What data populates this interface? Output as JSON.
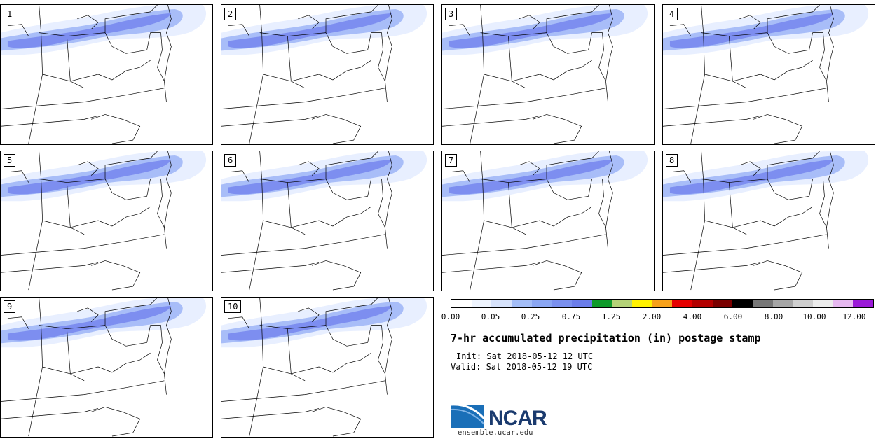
{
  "panels": [
    {
      "label": "1"
    },
    {
      "label": "2"
    },
    {
      "label": "3"
    },
    {
      "label": "4"
    },
    {
      "label": "5"
    },
    {
      "label": "6"
    },
    {
      "label": "7"
    },
    {
      "label": "8"
    },
    {
      "label": "9"
    },
    {
      "label": "10"
    }
  ],
  "colorbar": {
    "colors": [
      "#ffffff",
      "#eef4fe",
      "#d6e2fb",
      "#a3bdf7",
      "#8aa6f3",
      "#7a90ef",
      "#6b7dea",
      "#0e9a2a",
      "#b4d277",
      "#fff200",
      "#f7a11a",
      "#e60000",
      "#b30000",
      "#7a0000",
      "#000000",
      "#777777",
      "#a6a6a6",
      "#cfcfcf",
      "#ececec",
      "#e6b8f0",
      "#9b1ad8"
    ],
    "labels": [
      "0.00",
      "0.05",
      "0.25",
      "0.75",
      "1.25",
      "2.00",
      "4.00",
      "6.00",
      "8.00",
      "10.00",
      "12.00"
    ]
  },
  "title": "7-hr accumulated precipitation (in) postage stamp",
  "init_text": "Init: Sat 2018-05-12 12 UTC",
  "valid_text": "Valid: Sat 2018-05-12 19 UTC",
  "logo": {
    "text": "NCAR",
    "url_text": "ensemble.ucar.edu"
  }
}
